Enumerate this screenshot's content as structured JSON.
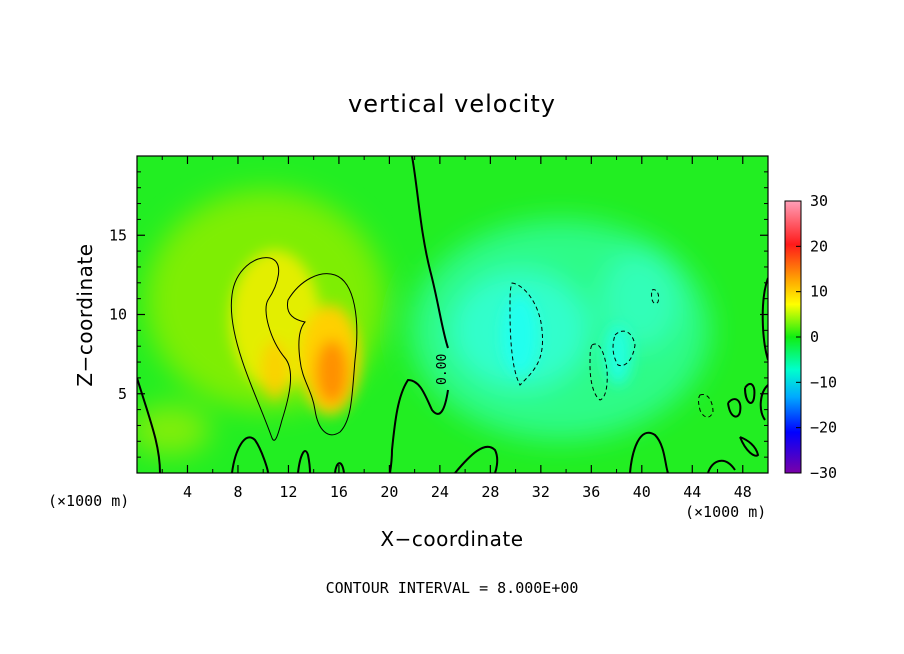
{
  "chart_data": {
    "type": "heatmap",
    "title": "vertical velocity",
    "xlabel": "X−coordinate",
    "ylabel": "Z−coordinate",
    "x_unit_left": "(×1000 m)",
    "x_unit_right": "(×1000 m)",
    "xlim": [
      0,
      50
    ],
    "ylim": [
      0,
      20
    ],
    "x_ticks": [
      4,
      8,
      12,
      16,
      20,
      24,
      28,
      32,
      36,
      40,
      44,
      48
    ],
    "y_ticks": [
      5,
      10,
      15
    ],
    "x_tick_labels": [
      "4",
      "8",
      "12",
      "16",
      "20",
      "24",
      "28",
      "32",
      "36",
      "40",
      "44",
      "48"
    ],
    "y_tick_labels": [
      "5",
      "10",
      "15"
    ],
    "colorbar": {
      "min": -30,
      "max": 30,
      "ticks": [
        30,
        20,
        10,
        0,
        -10,
        -20,
        -30
      ],
      "tick_labels": [
        "30",
        "20",
        "10",
        "0",
        "−10",
        "−20",
        "−30"
      ],
      "colors": [
        "#ff99bb",
        "#ff0000",
        "#ff8800",
        "#ffff00",
        "#00ee00",
        "#00ffcc",
        "#00aaff",
        "#0000ff",
        "#7700aa"
      ]
    },
    "contour_label": "0.00",
    "contour_interval_text": "CONTOUR INTERVAL = 8.000E+00",
    "features": [
      {
        "kind": "updraft",
        "x": 15.5,
        "z": 6.5,
        "w": 14
      },
      {
        "kind": "updraft",
        "x": 11,
        "z": 8.5,
        "w": 9
      },
      {
        "kind": "downdraft",
        "x": 31,
        "z": 9,
        "w": -7
      },
      {
        "kind": "downdraft",
        "x": 39,
        "z": 8,
        "w": -6
      },
      {
        "kind": "downdraft",
        "x": 45,
        "z": 4.5,
        "w": -5
      }
    ]
  }
}
